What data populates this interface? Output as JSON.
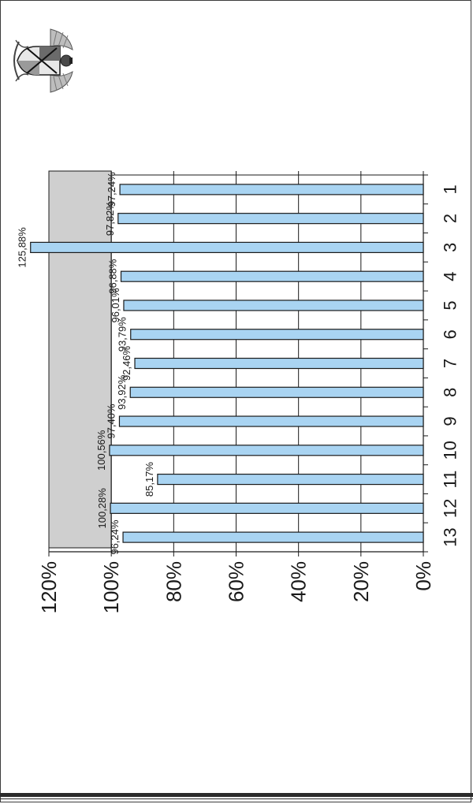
{
  "chart_data": {
    "type": "bar",
    "orientation": "vertical bars, page rotated 90 degrees",
    "categories": [
      "1",
      "2",
      "3",
      "4",
      "5",
      "6",
      "7",
      "8",
      "9",
      "10",
      "11",
      "12",
      "13"
    ],
    "values": [
      96.24,
      100.28,
      85.17,
      100.56,
      97.4,
      93.92,
      92.46,
      93.79,
      96.01,
      96.88,
      125.88,
      97.82,
      97.24
    ],
    "data_labels": [
      "96,24%",
      "100,28%",
      "85,17%",
      "100,56%",
      "97,40%",
      "93,92%",
      "92,46%",
      "93,79%",
      "96,01%",
      "96,88%",
      "125,88%",
      "97,82%",
      "97,24%"
    ],
    "ylim": [
      0,
      120
    ],
    "y_ticks": [
      0,
      20,
      40,
      60,
      80,
      100,
      120
    ],
    "y_tick_labels": [
      "0%",
      "20%",
      "40%",
      "60%",
      "80%",
      "100%",
      "120%"
    ],
    "grid": true,
    "legend": "none",
    "title": "",
    "xlabel": "",
    "ylabel": ""
  },
  "colors": {
    "bar_fill": "#a9d4f2",
    "bar_stroke": "#1a1a1a",
    "plot_background": "#ffffff",
    "back_wall": "#cfcfcf",
    "gridline": "#1a1a1a"
  },
  "logo": {
    "icon": "coat-of-arms-icon"
  }
}
